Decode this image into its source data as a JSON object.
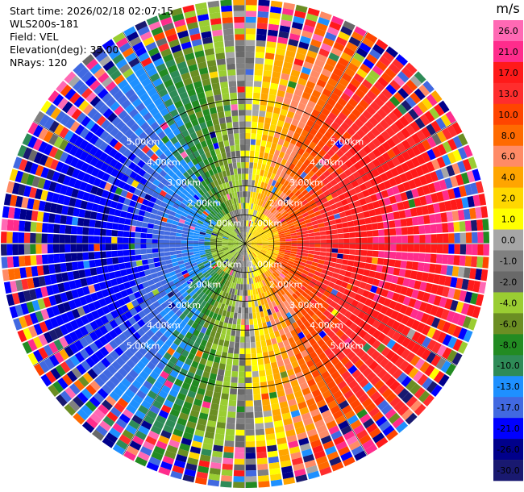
{
  "header": {
    "start_time": "Start time: 2026/02/18 02:07:15",
    "instrument": "WLS200s-181",
    "field": "Field: VEL",
    "elevation": "Elevation(deg): 35.00",
    "nrays": "NRays: 120"
  },
  "colorbar": {
    "unit": "m/s",
    "tick_labels": [
      "26.0",
      "21.0",
      "17.0",
      "13.0",
      "10.0",
      "8.0",
      "6.0",
      "4.0",
      "2.0",
      "1.0",
      "0.0",
      "-1.0",
      "-2.0",
      "-4.0",
      "-6.0",
      "-8.0",
      "-10.0",
      "-13.0",
      "-17.0",
      "-21.0",
      "-26.0",
      "-30.0"
    ],
    "colors": [
      "#ff2c8c",
      "#ff1a1a",
      "#ff2d2d",
      "#ff4500",
      "#ff6a00",
      "#ff8b66",
      "#ffa500",
      "#ffd700",
      "#ffff00",
      "#a6a6a6",
      "#808080",
      "#696969",
      "#9acd32",
      "#6b8e23",
      "#228b22",
      "#2e8b57",
      "#1e90ff",
      "#4169e1",
      "#0000ff",
      "#00008b",
      "#191970"
    ],
    "top_color": "#ff69b4"
  },
  "chart_data": {
    "type": "heatmap",
    "subtype": "radar-ppi",
    "field": "VEL",
    "unit": "m/s",
    "nrays": 120,
    "max_range_km": 5.0,
    "range_rings_km": [
      1.0,
      2.0,
      3.0,
      4.0,
      5.0
    ],
    "range_ring_labels": [
      "1.00km",
      "2.00km",
      "3.00km",
      "4.00km",
      "5.00km"
    ],
    "vmin": -30.0,
    "vmax": 30.0,
    "velocity_pattern": {
      "positive_toward_azimuth_deg": 90,
      "peak_positive_ms": 21,
      "peak_negative_ms": -21,
      "noisy_beyond_km": 4.2
    }
  }
}
